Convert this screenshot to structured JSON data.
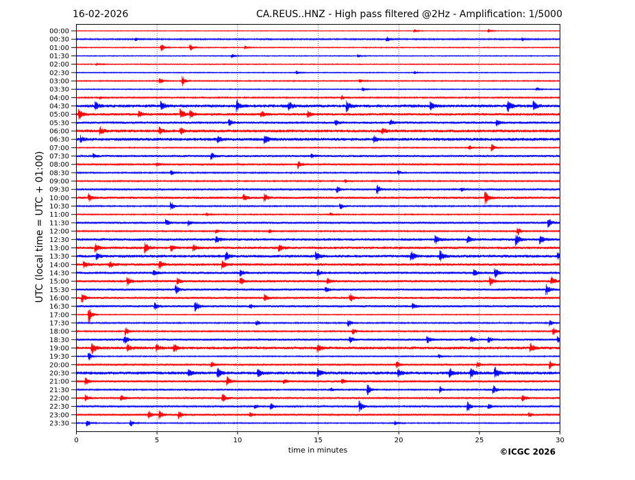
{
  "header": {
    "date": "16-02-2026",
    "title": "CA.REUS..HNZ - High pass filtered @2Hz - Amplification: 1/5000"
  },
  "copyright": "©ICGC 2026",
  "chart_data": {
    "type": "line",
    "subtype": "helicorder",
    "title": "CA.REUS..HNZ - High pass filtered @2Hz - Amplification: 1/5000",
    "xlabel": "time in minutes",
    "ylabel": "UTC (local time = UTC + 01:00)",
    "xlim": [
      0,
      30
    ],
    "x_ticks": [
      "0",
      "5",
      "10",
      "15",
      "20",
      "25",
      "30"
    ],
    "grid": "vertical dotted lines every 5 minutes",
    "colors": {
      "even": "#ff0000",
      "odd": "#0000ff"
    },
    "rows": [
      {
        "label": "00:00",
        "noise": 0.3,
        "events": [
          [
            21,
            1.5
          ],
          [
            25.6,
            2
          ]
        ]
      },
      {
        "label": "00:30",
        "noise": 0.6,
        "events": [
          [
            3.7,
            1.5
          ],
          [
            19.3,
            2.2
          ],
          [
            27.7,
            1.6
          ]
        ]
      },
      {
        "label": "01:00",
        "noise": 0.4,
        "events": [
          [
            5.3,
            4
          ],
          [
            7.1,
            3
          ],
          [
            10.5,
            1.5
          ]
        ]
      },
      {
        "label": "01:30",
        "noise": 0.4,
        "events": [
          [
            9.7,
            2
          ],
          [
            17.5,
            1.5
          ]
        ]
      },
      {
        "label": "02:00",
        "noise": 0.4,
        "events": [
          [
            1.3,
            1.2
          ]
        ]
      },
      {
        "label": "02:30",
        "noise": 0.4,
        "events": [
          [
            13.7,
            1.5
          ],
          [
            21,
            1.2
          ]
        ]
      },
      {
        "label": "03:00",
        "noise": 0.5,
        "events": [
          [
            5.2,
            3
          ],
          [
            6.6,
            5
          ],
          [
            17.6,
            1.6
          ]
        ]
      },
      {
        "label": "03:30",
        "noise": 0.4,
        "events": [
          [
            17.8,
            2
          ],
          [
            28.6,
            1.8
          ]
        ]
      },
      {
        "label": "04:00",
        "noise": 0.6,
        "events": [
          [
            1.5,
            1.5
          ],
          [
            16.5,
            1.8
          ]
        ]
      },
      {
        "label": "04:30",
        "noise": 1.3,
        "events": [
          [
            1.2,
            4
          ],
          [
            5.3,
            4
          ],
          [
            10,
            5
          ],
          [
            13.2,
            4
          ],
          [
            16.8,
            5
          ],
          [
            22,
            4
          ],
          [
            26.8,
            6
          ],
          [
            28.4,
            4
          ]
        ]
      },
      {
        "label": "05:00",
        "noise": 1.1,
        "events": [
          [
            0.2,
            5
          ],
          [
            3.9,
            4
          ],
          [
            6.5,
            5
          ],
          [
            7.1,
            4
          ],
          [
            11.5,
            3
          ],
          [
            14.4,
            3
          ]
        ]
      },
      {
        "label": "05:30",
        "noise": 1.0,
        "events": [
          [
            9.5,
            3
          ],
          [
            16.1,
            3
          ],
          [
            19.5,
            2.5
          ],
          [
            26.1,
            3
          ]
        ]
      },
      {
        "label": "06:00",
        "noise": 1.2,
        "events": [
          [
            1.5,
            4
          ],
          [
            5.2,
            3.5
          ],
          [
            6.5,
            3
          ],
          [
            19,
            3
          ]
        ]
      },
      {
        "label": "06:30",
        "noise": 1.3,
        "events": [
          [
            0.3,
            3
          ],
          [
            11.7,
            5
          ],
          [
            18.5,
            3
          ],
          [
            8.8,
            3
          ]
        ]
      },
      {
        "label": "07:00",
        "noise": 0.5,
        "events": [
          [
            24.4,
            2
          ],
          [
            25.8,
            4
          ]
        ]
      },
      {
        "label": "07:30",
        "noise": 0.9,
        "events": [
          [
            1.1,
            2
          ],
          [
            8.4,
            3
          ],
          [
            14.6,
            2
          ]
        ]
      },
      {
        "label": "08:00",
        "noise": 0.7,
        "events": [
          [
            13.8,
            4
          ],
          [
            5,
            2
          ]
        ]
      },
      {
        "label": "08:30",
        "noise": 0.6,
        "events": [
          [
            5.9,
            2.5
          ],
          [
            20,
            2
          ]
        ]
      },
      {
        "label": "09:00",
        "noise": 0.6,
        "events": [
          [
            16.7,
            1.6
          ]
        ]
      },
      {
        "label": "09:30",
        "noise": 0.7,
        "events": [
          [
            16.2,
            3
          ],
          [
            18.7,
            4
          ],
          [
            23.9,
            2
          ]
        ]
      },
      {
        "label": "10:00",
        "noise": 1.0,
        "events": [
          [
            0.8,
            4
          ],
          [
            10.4,
            3
          ],
          [
            11.7,
            4
          ],
          [
            25.4,
            6
          ]
        ]
      },
      {
        "label": "10:30",
        "noise": 0.6,
        "events": [
          [
            5.9,
            4
          ],
          [
            16.4,
            3
          ]
        ]
      },
      {
        "label": "11:00",
        "noise": 0.5,
        "events": [
          [
            8.1,
            1.5
          ],
          [
            15.8,
            1.6
          ]
        ]
      },
      {
        "label": "11:30",
        "noise": 0.9,
        "events": [
          [
            5.6,
            3
          ],
          [
            7,
            2.5
          ],
          [
            29.3,
            5
          ]
        ]
      },
      {
        "label": "12:00",
        "noise": 0.6,
        "events": [
          [
            8.7,
            2
          ],
          [
            12,
            2
          ],
          [
            27.4,
            4
          ]
        ]
      },
      {
        "label": "12:30",
        "noise": 1.1,
        "events": [
          [
            8.7,
            3
          ],
          [
            22.3,
            4
          ],
          [
            24.3,
            4
          ],
          [
            27.3,
            6
          ],
          [
            28.8,
            4
          ]
        ]
      },
      {
        "label": "13:00",
        "noise": 1.1,
        "events": [
          [
            1.2,
            4
          ],
          [
            4.3,
            5
          ],
          [
            5.9,
            3.5
          ],
          [
            7.3,
            3
          ],
          [
            12.6,
            3
          ]
        ]
      },
      {
        "label": "13:30",
        "noise": 1.2,
        "events": [
          [
            1.3,
            3
          ],
          [
            9.3,
            4
          ],
          [
            14.9,
            4
          ],
          [
            20.8,
            5
          ],
          [
            22.6,
            5
          ],
          [
            29.9,
            4
          ]
        ]
      },
      {
        "label": "14:00",
        "noise": 1.1,
        "events": [
          [
            0.5,
            4
          ],
          [
            2.1,
            3
          ],
          [
            5.2,
            4
          ],
          [
            9.1,
            4
          ]
        ]
      },
      {
        "label": "14:30",
        "noise": 1.0,
        "events": [
          [
            4.8,
            3
          ],
          [
            10.2,
            3
          ],
          [
            15,
            3
          ],
          [
            24.7,
            3
          ],
          [
            26,
            5
          ]
        ]
      },
      {
        "label": "15:00",
        "noise": 1.0,
        "events": [
          [
            3.2,
            4
          ],
          [
            6.3,
            3
          ],
          [
            10.2,
            4
          ],
          [
            15.6,
            3
          ],
          [
            25.7,
            4
          ],
          [
            29.5,
            4
          ]
        ]
      },
      {
        "label": "15:30",
        "noise": 0.9,
        "events": [
          [
            6.2,
            4
          ],
          [
            15.5,
            3
          ],
          [
            29.2,
            5
          ]
        ]
      },
      {
        "label": "16:00",
        "noise": 0.9,
        "events": [
          [
            0.4,
            4
          ],
          [
            11.7,
            3
          ],
          [
            17,
            4
          ]
        ]
      },
      {
        "label": "16:30",
        "noise": 0.9,
        "events": [
          [
            4.9,
            3
          ],
          [
            7.4,
            5
          ],
          [
            10.8,
            2
          ],
          [
            20.9,
            2.5
          ]
        ]
      },
      {
        "label": "17:00",
        "noise": 0.4,
        "events": [
          [
            0.8,
            8
          ]
        ]
      },
      {
        "label": "17:30",
        "noise": 0.6,
        "events": [
          [
            11.2,
            3
          ],
          [
            16.9,
            3.5
          ],
          [
            29.4,
            3
          ]
        ]
      },
      {
        "label": "18:00",
        "noise": 0.6,
        "events": [
          [
            3.1,
            4
          ],
          [
            17.2,
            3
          ],
          [
            29.6,
            4
          ]
        ]
      },
      {
        "label": "18:30",
        "noise": 0.9,
        "events": [
          [
            3,
            4
          ],
          [
            17,
            3
          ],
          [
            21.8,
            4
          ],
          [
            24.5,
            3
          ],
          [
            25.6,
            3
          ],
          [
            29.9,
            3
          ]
        ]
      },
      {
        "label": "19:00",
        "noise": 1.2,
        "events": [
          [
            1,
            5
          ],
          [
            3.2,
            3
          ],
          [
            5,
            4
          ],
          [
            6.1,
            4
          ],
          [
            15,
            4
          ],
          [
            28.2,
            4
          ]
        ]
      },
      {
        "label": "19:30",
        "noise": 0.5,
        "events": [
          [
            0.8,
            4
          ],
          [
            22.5,
            2
          ]
        ]
      },
      {
        "label": "20:00",
        "noise": 0.7,
        "events": [
          [
            8.4,
            3
          ],
          [
            19.9,
            3
          ],
          [
            24.9,
            3
          ],
          [
            29.4,
            4
          ]
        ]
      },
      {
        "label": "20:30",
        "noise": 1.3,
        "events": [
          [
            7,
            3
          ],
          [
            8.8,
            5
          ],
          [
            11.3,
            4
          ],
          [
            15,
            4
          ],
          [
            20,
            3
          ],
          [
            23.2,
            4
          ],
          [
            24.5,
            5
          ],
          [
            26,
            5
          ]
        ]
      },
      {
        "label": "21:00",
        "noise": 0.9,
        "events": [
          [
            0.6,
            4
          ],
          [
            9.4,
            4
          ],
          [
            12.9,
            2
          ],
          [
            16.5,
            2
          ]
        ]
      },
      {
        "label": "21:30",
        "noise": 0.6,
        "events": [
          [
            15.8,
            2
          ],
          [
            18.1,
            5
          ],
          [
            22.6,
            3
          ],
          [
            25.9,
            4
          ]
        ]
      },
      {
        "label": "22:00",
        "noise": 0.8,
        "events": [
          [
            0.6,
            3
          ],
          [
            2.8,
            3
          ],
          [
            9.1,
            5
          ],
          [
            27.7,
            3
          ]
        ]
      },
      {
        "label": "22:30",
        "noise": 0.7,
        "events": [
          [
            11.1,
            2
          ],
          [
            12.1,
            3
          ],
          [
            17.6,
            5
          ],
          [
            24.3,
            5
          ],
          [
            25.6,
            3
          ]
        ]
      },
      {
        "label": "23:00",
        "noise": 0.8,
        "events": [
          [
            4.5,
            4
          ],
          [
            5.2,
            4
          ],
          [
            6.4,
            4
          ],
          [
            10.8,
            2
          ],
          [
            28.1,
            2
          ]
        ]
      },
      {
        "label": "23:30",
        "noise": 0.5,
        "events": [
          [
            0.7,
            3
          ],
          [
            3.4,
            3
          ],
          [
            19.8,
            2
          ]
        ]
      }
    ]
  }
}
